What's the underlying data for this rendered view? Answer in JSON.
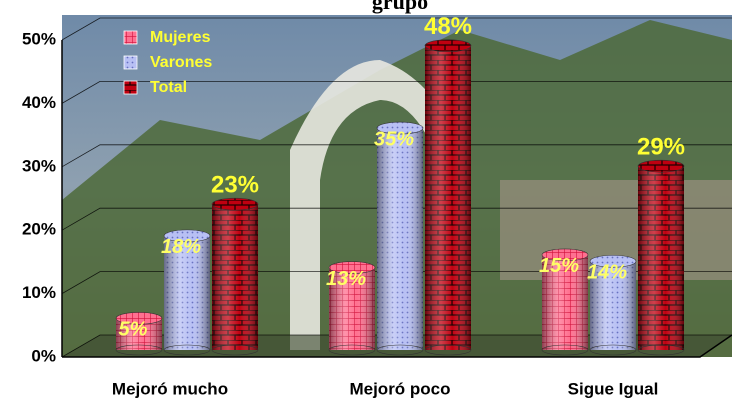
{
  "chart_data": {
    "type": "bar",
    "title": "grupo",
    "categories": [
      "Mejoró mucho",
      "Mejoró poco",
      "Sigue Igual"
    ],
    "series": [
      {
        "name": "Mujeres",
        "color": "#ff6680",
        "values": [
          5,
          13,
          15
        ],
        "value_labels": [
          "5%",
          "13%",
          "15%"
        ]
      },
      {
        "name": "Varones",
        "color": "#b0b8f0",
        "values": [
          18,
          35,
          14
        ],
        "value_labels": [
          "18%",
          "35%",
          "14%"
        ]
      },
      {
        "name": "Total",
        "color": "#b00010",
        "values": [
          23,
          48,
          29
        ],
        "value_labels": [
          "23%",
          "48%",
          "29%"
        ]
      }
    ],
    "ylim": [
      0,
      50
    ],
    "yticks": [
      {
        "value": 0,
        "label": "0%"
      },
      {
        "value": 10,
        "label": "10%"
      },
      {
        "value": 20,
        "label": "20%"
      },
      {
        "value": 30,
        "label": "30%"
      },
      {
        "value": 40,
        "label": "40%"
      },
      {
        "value": 50,
        "label": "50%"
      }
    ],
    "grid": true,
    "legend": "top-left"
  }
}
